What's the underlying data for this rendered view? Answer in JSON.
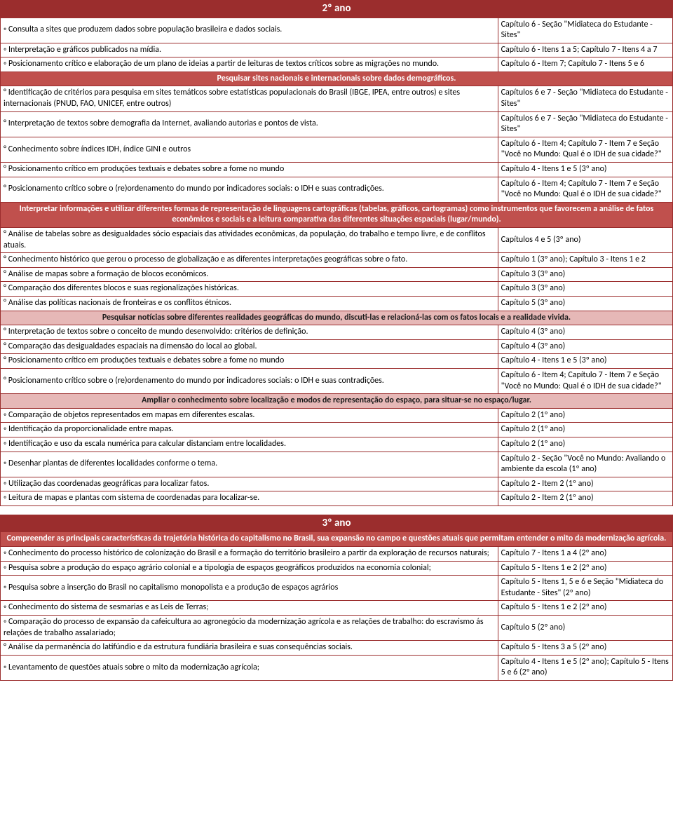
{
  "t2_title": "2º ano",
  "s2": [
    {
      "l": "◦ Consulta a sites que produzem dados sobre população brasileira e dados sociais.",
      "r": "Capítulo 6 - Seção \"Midiateca do Estudante - Sites\""
    },
    {
      "l": "◦ Interpretação e gráficos publicados na mídia.",
      "r": "Capítulo 6 - Itens 1 a 5; Capítulo 7 - Itens 4 a 7"
    },
    {
      "l": "◦ Posicionamento crítico e elaboração de um plano de ideias a partir de leituras de textos críticos sobre as migrações no mundo.",
      "r": "Capítulo 6 - Item 7; Capítulo 7 - Itens 5 e 6"
    }
  ],
  "h2a": "Pesquisar sites nacionais e internacionais sobre dados demográficos.",
  "s2a": [
    {
      "l": "° Identificação de critérios para pesquisa em sites temáticos sobre estatísticas populacionais do Brasil (IBGE, IPEA, entre outros) e sites internacionais (PNUD, FAO, UNICEF, entre outros)",
      "r": "Capítulos 6 e 7 - Seção \"Midiateca do Estudante - Sites\""
    },
    {
      "l": "° Interpretação de textos sobre demografia da Internet, avaliando autorias e pontos de vista.",
      "r": "Capítulos 6 e 7 - Seção \"Midiateca do Estudante - Sites\""
    },
    {
      "l": "° Conhecimento sobre índices IDH, índice GINI e outros",
      "r": "Capítulo 6 - Item 4; Capítulo 7 - Item 7 e Seção \"Você no Mundo: Qual é o IDH de sua cidade?\""
    },
    {
      "l": "° Posicionamento crítico em produções textuais e debates sobre a fome no mundo",
      "r": "Capítulo 4 - Itens 1 e 5 (3º ano)"
    },
    {
      "l": "° Posicionamento crítico sobre o (re)ordenamento do mundo por indicadores sociais: o IDH e suas contradições.",
      "r": "Capítulo 6 - Item 4; Capítulo 7 - Item 7 e Seção \"Você no Mundo: Qual é o IDH de sua cidade?\""
    }
  ],
  "h2b": "Interpretar informações e utilizar diferentes formas de representação de linguagens cartográficas (tabelas, gráficos, cartogramas) como instrumentos que favorecem a análise de fatos econômicos e sociais e a leitura comparativa das diferentes situações espaciais (lugar/mundo).",
  "s2b": [
    {
      "l": "° Análise de tabelas sobre as desigualdades sócio espaciais das atividades econômicas, da população, do trabalho e tempo livre, e de conflitos atuais.",
      "r": "Capítulos 4 e 5 (3º ano)"
    },
    {
      "l": "° Conhecimento histórico que gerou o processo de globalização e as diferentes interpretações geográficas sobre o fato.",
      "r": "Capítulo 1 (3º ano); Capítulo 3 - Itens 1 e 2"
    },
    {
      "l": "° Análise de mapas sobre a formação de blocos econômicos.",
      "r": "Capítulo 3 (3º ano)"
    },
    {
      "l": "° Comparação dos diferentes blocos e suas regionalizações históricas.",
      "r": "Capítulo 3 (3º ano)"
    },
    {
      "l": "° Análise das políticas nacionais de fronteiras e os conflitos étnicos.",
      "r": "Capítulo 5 (3º ano)"
    }
  ],
  "h2c": "Pesquisar notícias sobre diferentes realidades geográficas do mundo, discuti-las e relacioná-las com os fatos locais e a realidade vivida.",
  "s2c": [
    {
      "l": "° Interpretação de textos sobre o conceito de mundo desenvolvido: critérios de definição.",
      "r": "Capítulo 4 (3º ano)"
    },
    {
      "l": "° Comparação das desigualdades espaciais na dimensão do local ao global.",
      "r": "Capítulo 4 (3º ano)"
    },
    {
      "l": "° Posicionamento crítico em produções textuais e debates sobre a fome no mundo",
      "r": "Capítulo 4 - Itens 1 e 5 (3º ano)"
    },
    {
      "l": "° Posicionamento crítico sobre o (re)ordenamento do mundo por indicadores sociais: o IDH e suas contradições.",
      "r": "Capítulo 6 - Item 4; Capítulo 7 - Item 7 e Seção \"Você no Mundo: Qual é o IDH de sua cidade?\""
    }
  ],
  "h2d": "Ampliar o conhecimento sobre localização e modos de representação do espaço, para situar-se no espaço/lugar.",
  "s2d": [
    {
      "l": "◦ Comparação de objetos representados em mapas em diferentes escalas.",
      "r": "Capítulo 2 (1º ano)"
    },
    {
      "l": "◦ Identificação da proporcionalidade entre mapas.",
      "r": "Capítulo 2 (1º ano)"
    },
    {
      "l": "◦ Identificação e uso da escala numérica para calcular distanciam entre localidades.",
      "r": "Capítulo 2 (1º ano)"
    },
    {
      "l": "◦ Desenhar plantas de diferentes localidades conforme o tema.",
      "r": "Capítulo 2 - Seção \"Você no Mundo: Avaliando o ambiente da escola (1º ano)"
    },
    {
      "l": "◦ Utilização das coordenadas geográficas para localizar fatos.",
      "r": "Capítulo 2 - Item 2 (1º ano)"
    },
    {
      "l": "◦ Leitura de mapas e plantas com sistema de coordenadas para localizar-se.",
      "r": "Capítulo 2 - Item 2 (1º ano)"
    }
  ],
  "t3_title": "3º ano",
  "h3a": "Compreender as principais características da trajetória histórica do capitalismo no Brasil, sua expansão no campo e questões atuais que permitam entender o mito da modernização agrícola.",
  "s3a": [
    {
      "l": "◦ Conhecimento do processo histórico de colonização do Brasil e a formação do território brasileiro a partir da exploração de recursos naturais;",
      "r": "Capítulo 7 - Itens 1 a 4 (2º ano)"
    },
    {
      "l": "◦ Pesquisa sobre a produção do espaço agrário colonial e a tipologia de espaços geográficos produzidos na economia colonial;",
      "r": "Capítulo 5 - Itens 1 e 2 (2º ano)"
    },
    {
      "l": "◦ Pesquisa sobre a inserção do Brasil no capitalismo monopolista e a produção de espaços agrários",
      "r": "Capítulo 5 - Itens 1, 5 e 6 e Seção \"Midiateca do Estudante - Sites\" (2º ano)"
    },
    {
      "l": "◦ Conhecimento do sistema de sesmarias e as Leis de Terras;",
      "r": "Capítulo 5 - Itens 1 e 2 (2º ano)"
    },
    {
      "l": "◦ Comparação do processo de expansão da cafeicultura ao agronegócio da modernização agrícola e as relações de trabalho: do escravismo ás relações de trabalho assalariado;",
      "r": "Capítulo 5 (2º ano)"
    },
    {
      "l": "° Análise da permanência do latifúndio e da estrutura fundiária brasileira e suas consequências sociais.",
      "r": "Capítulo 5 - Itens 3 a 5 (2º ano)"
    },
    {
      "l": "◦ Levantamento de questões atuais sobre o mito da modernização agrícola;",
      "r": "Capítulo 4 - Itens 1 e 5 (2º ano); Capítulo 5 - Itens 5 e 6 (2º ano)"
    }
  ]
}
